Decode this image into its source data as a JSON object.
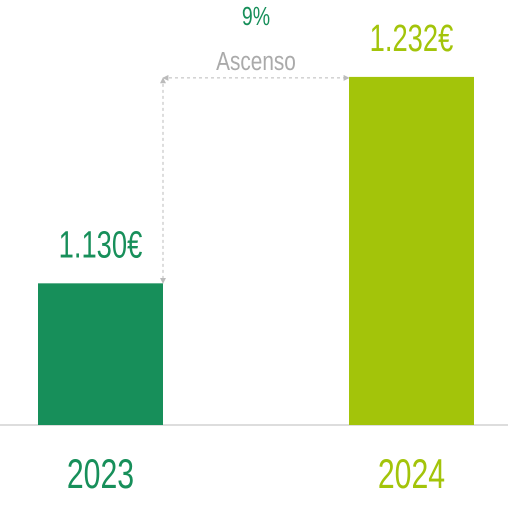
{
  "chart_data": {
    "type": "bar",
    "categories": [
      "2023",
      "2024"
    ],
    "values": [
      1130,
      1232
    ],
    "value_labels": [
      "1.130€",
      "1.232€"
    ],
    "colors": [
      "#178f5a",
      "#a3c40a"
    ],
    "ylim": [
      1060,
      1270
    ],
    "annotation": {
      "value": "9%",
      "label": "Ascenso"
    }
  }
}
